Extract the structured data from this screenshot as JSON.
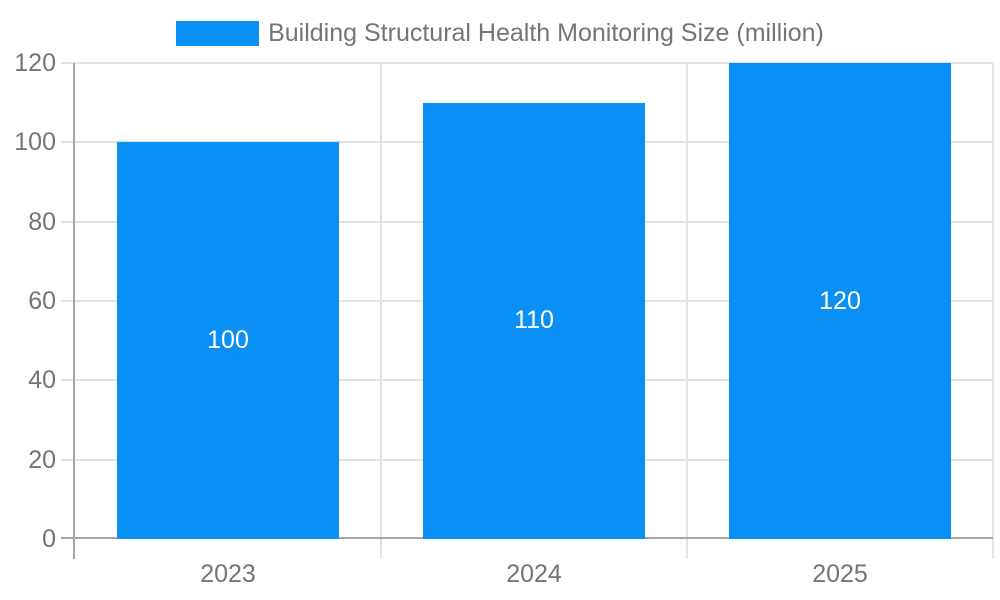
{
  "colors": {
    "bar": "#0a90f5",
    "label_text": "#757575",
    "value_text": "#ffffff",
    "gridline": "#e3e3e3",
    "axis_line": "#a6a6a6"
  },
  "chart_data": {
    "type": "bar",
    "title": "Building Structural Health Monitoring Size (million)",
    "legend_position": "top",
    "categories": [
      "2023",
      "2024",
      "2025"
    ],
    "series": [
      {
        "name": "Building Structural Health Monitoring Size (million)",
        "values": [
          100,
          110,
          120
        ]
      }
    ],
    "bar_value_labels": [
      "100",
      "110",
      "120"
    ],
    "xlabel": "",
    "ylabel": "",
    "ylim": [
      0,
      120
    ],
    "yticks": [
      0,
      20,
      40,
      60,
      80,
      100,
      120
    ],
    "grid": true,
    "gridlines_vertical": true
  }
}
